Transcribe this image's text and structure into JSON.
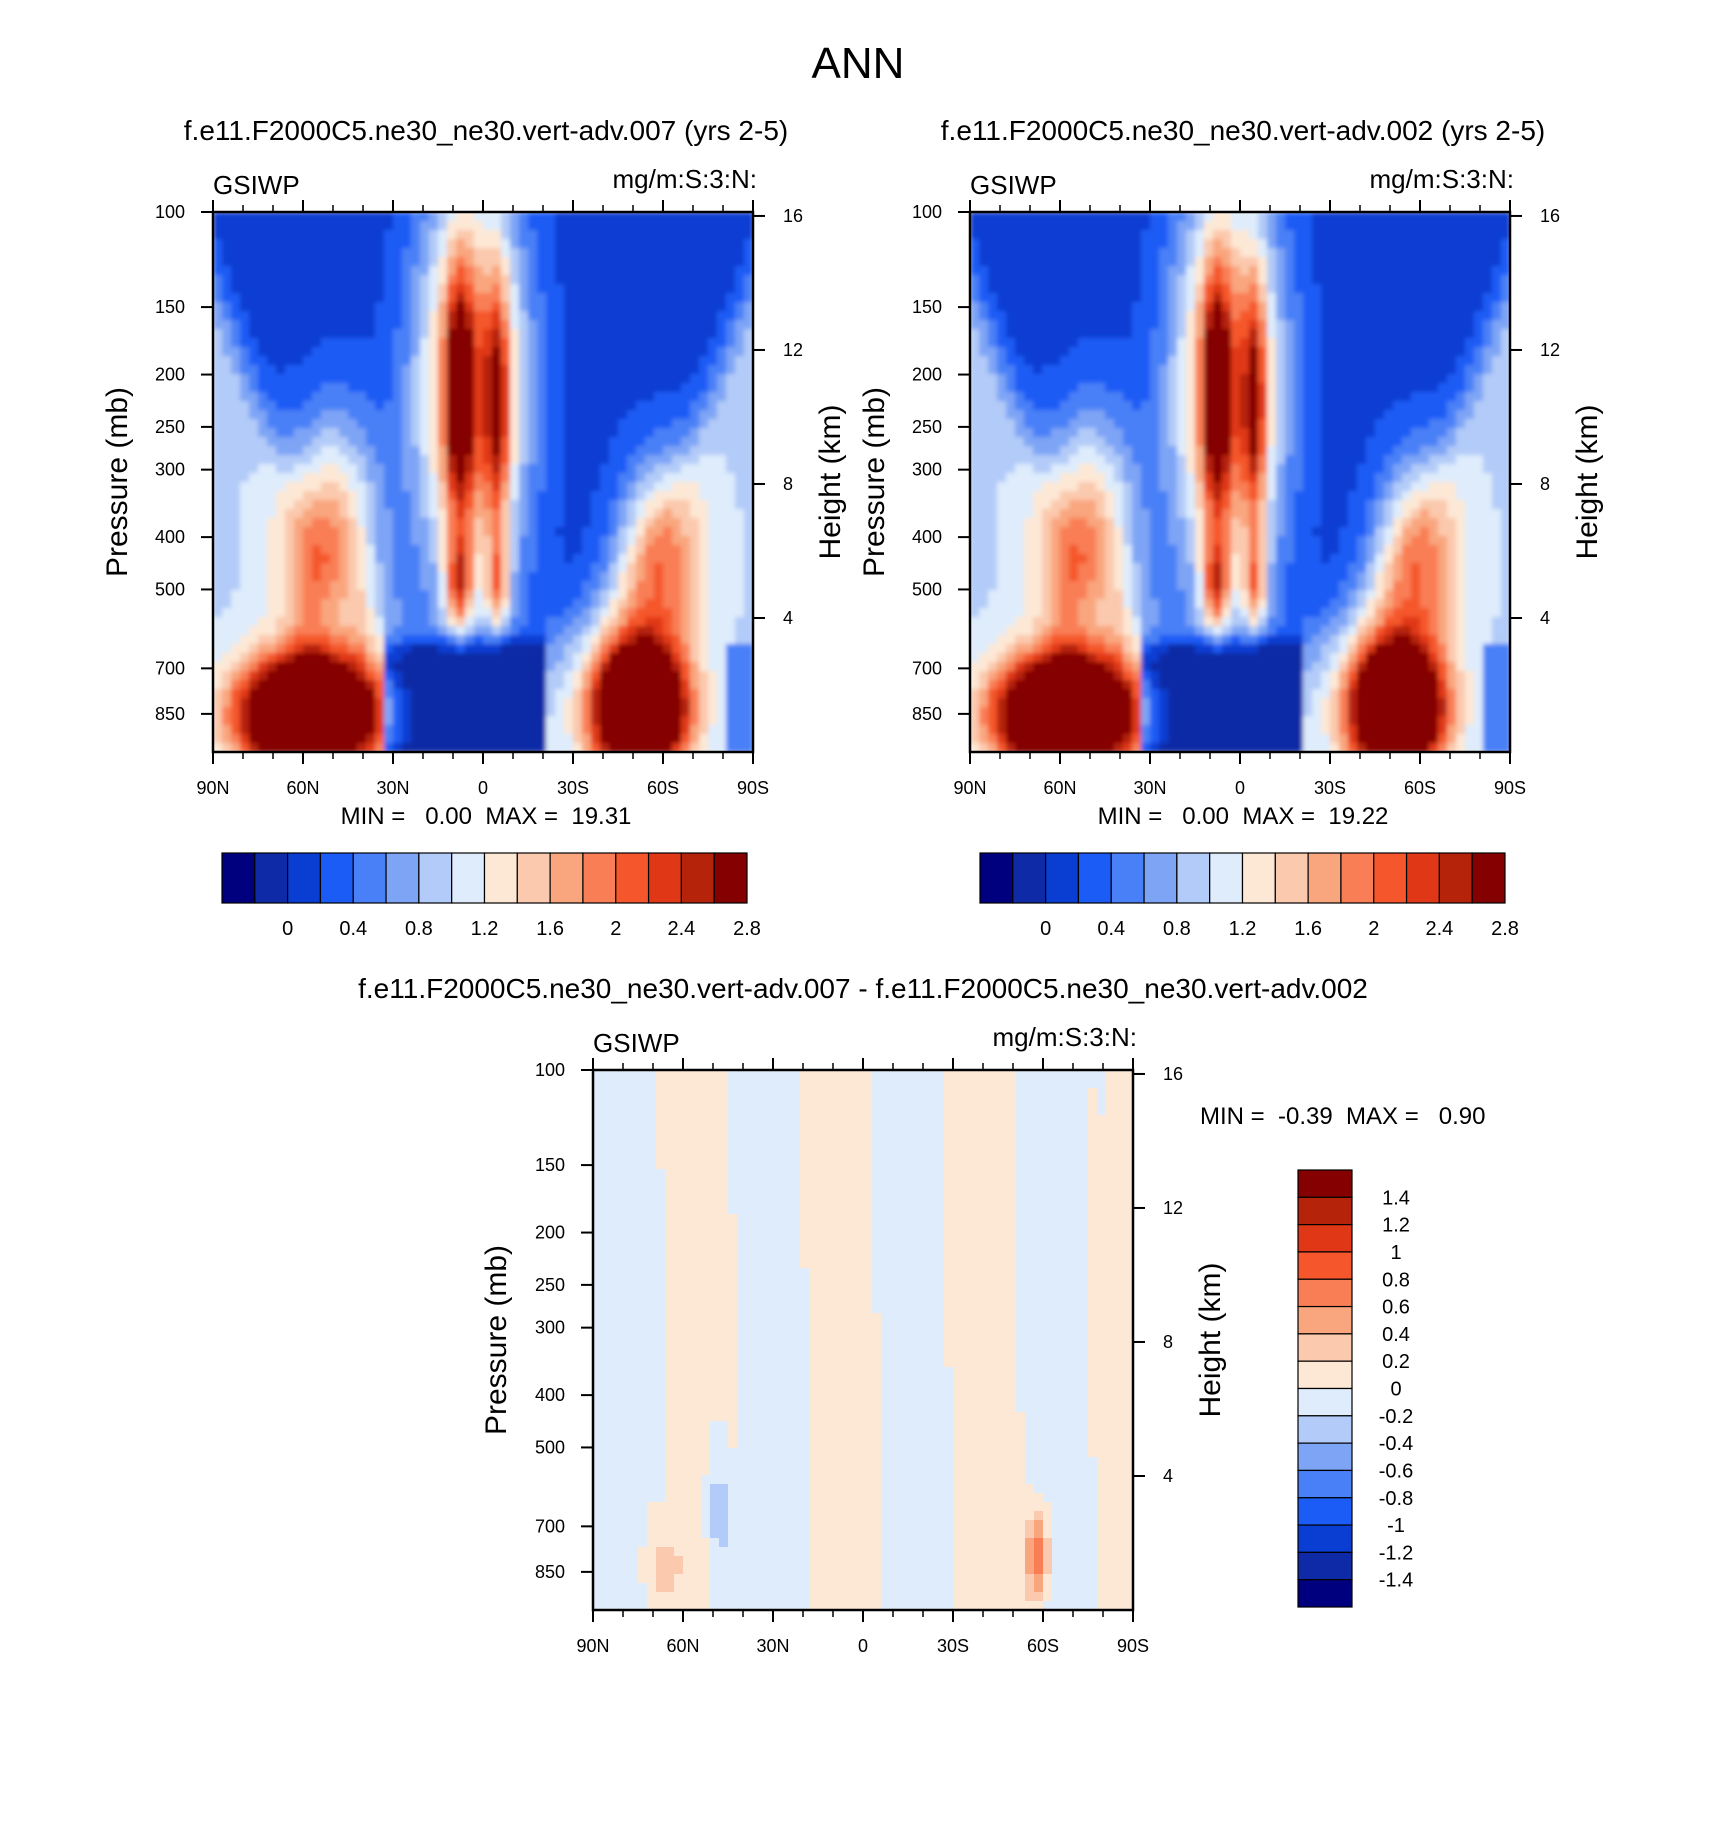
{
  "page_title": "ANN",
  "chart_data": [
    {
      "type": "heatmap",
      "panel": "case-007",
      "title": "f.e11.F2000C5.ne30_ne30.vert-adv.007 (yrs 2-5)",
      "variable_label": "GSIWP",
      "units_label": "mg/m:S:3:N:",
      "ylabel": "Pressure (mb)",
      "y2label": "Height (km)",
      "xlabel": "",
      "x_tick_labels": [
        "90N",
        "60N",
        "30N",
        "0",
        "30S",
        "60S",
        "90S"
      ],
      "x_ticks": [
        90,
        60,
        30,
        0,
        -30,
        -60,
        -90
      ],
      "xlim": [
        90,
        -90
      ],
      "y_tick_labels": [
        "100",
        "150",
        "200",
        "250",
        "300",
        "400",
        "500",
        "700",
        "850"
      ],
      "y_ticks": [
        100,
        150,
        200,
        250,
        300,
        400,
        500,
        700,
        850
      ],
      "y_scale": "log",
      "ylim": [
        100,
        1000
      ],
      "y2_tick_labels": [
        "16",
        "12",
        "8",
        "4"
      ],
      "y2_ticks": [
        16,
        12,
        8,
        4
      ],
      "stats_text": "MIN =   0.00  MAX =  19.31",
      "min": 0.0,
      "max": 19.31,
      "contour_levels": [
        0,
        0.2,
        0.4,
        0.6,
        0.8,
        1.0,
        1.2,
        1.4,
        1.6,
        1.8,
        2.0,
        2.2,
        2.4,
        2.6,
        2.8
      ],
      "colorbar_labels": [
        "0",
        "0.4",
        "0.8",
        "1.2",
        "1.6",
        "2",
        "2.4",
        "2.8"
      ],
      "colorbar_orientation": "horizontal",
      "field_features": [
        {
          "lat": 8,
          "p": 250,
          "value": 3.0
        },
        {
          "lat": -5,
          "p": 250,
          "value": 2.8
        },
        {
          "lat": 8,
          "p": 500,
          "value": 2.8
        },
        {
          "lat": -5,
          "p": 500,
          "value": 2.6
        },
        {
          "lat": 50,
          "p": 380,
          "value": 2.2
        },
        {
          "lat": -58,
          "p": 430,
          "value": 2.0
        },
        {
          "lat": 58,
          "p": 820,
          "value": 3.0
        },
        {
          "lat": -52,
          "p": 800,
          "value": 3.0
        },
        {
          "lat": 20,
          "p": 800,
          "value": 0.1
        }
      ]
    },
    {
      "type": "heatmap",
      "panel": "case-002",
      "title": "f.e11.F2000C5.ne30_ne30.vert-adv.002 (yrs 2-5)",
      "variable_label": "GSIWP",
      "units_label": "mg/m:S:3:N:",
      "ylabel": "Pressure (mb)",
      "y2label": "Height (km)",
      "xlabel": "",
      "x_tick_labels": [
        "90N",
        "60N",
        "30N",
        "0",
        "30S",
        "60S",
        "90S"
      ],
      "x_ticks": [
        90,
        60,
        30,
        0,
        -30,
        -60,
        -90
      ],
      "xlim": [
        90,
        -90
      ],
      "y_tick_labels": [
        "100",
        "150",
        "200",
        "250",
        "300",
        "400",
        "500",
        "700",
        "850"
      ],
      "y_ticks": [
        100,
        150,
        200,
        250,
        300,
        400,
        500,
        700,
        850
      ],
      "y_scale": "log",
      "ylim": [
        100,
        1000
      ],
      "y2_tick_labels": [
        "16",
        "12",
        "8",
        "4"
      ],
      "y2_ticks": [
        16,
        12,
        8,
        4
      ],
      "stats_text": "MIN =   0.00  MAX =  19.22",
      "min": 0.0,
      "max": 19.22,
      "contour_levels": [
        0,
        0.2,
        0.4,
        0.6,
        0.8,
        1.0,
        1.2,
        1.4,
        1.6,
        1.8,
        2.0,
        2.2,
        2.4,
        2.6,
        2.8
      ],
      "colorbar_labels": [
        "0",
        "0.4",
        "0.8",
        "1.2",
        "1.6",
        "2",
        "2.4",
        "2.8"
      ],
      "colorbar_orientation": "horizontal",
      "field_features": [
        {
          "lat": 8,
          "p": 250,
          "value": 3.0
        },
        {
          "lat": -5,
          "p": 250,
          "value": 2.7
        },
        {
          "lat": 8,
          "p": 500,
          "value": 2.8
        },
        {
          "lat": -5,
          "p": 500,
          "value": 2.5
        },
        {
          "lat": 50,
          "p": 380,
          "value": 2.2
        },
        {
          "lat": -58,
          "p": 430,
          "value": 1.9
        },
        {
          "lat": 58,
          "p": 820,
          "value": 3.0
        },
        {
          "lat": -52,
          "p": 800,
          "value": 3.0
        },
        {
          "lat": 20,
          "p": 800,
          "value": 0.1
        }
      ]
    },
    {
      "type": "heatmap",
      "panel": "difference",
      "title": "f.e11.F2000C5.ne30_ne30.vert-adv.007 - f.e11.F2000C5.ne30_ne30.vert-adv.002",
      "variable_label": "GSIWP",
      "units_label": "mg/m:S:3:N:",
      "ylabel": "Pressure (mb)",
      "y2label": "Height (km)",
      "xlabel": "",
      "x_tick_labels": [
        "90N",
        "60N",
        "30N",
        "0",
        "30S",
        "60S",
        "90S"
      ],
      "x_ticks": [
        90,
        60,
        30,
        0,
        -30,
        -60,
        -90
      ],
      "xlim": [
        90,
        -90
      ],
      "y_tick_labels": [
        "100",
        "150",
        "200",
        "250",
        "300",
        "400",
        "500",
        "700",
        "850"
      ],
      "y_ticks": [
        100,
        150,
        200,
        250,
        300,
        400,
        500,
        700,
        850
      ],
      "y_scale": "log",
      "ylim": [
        100,
        1000
      ],
      "y2_tick_labels": [
        "16",
        "12",
        "8",
        "4"
      ],
      "y2_ticks": [
        16,
        12,
        8,
        4
      ],
      "stats_text": "MIN =  -0.39  MAX =   0.90",
      "min": -0.39,
      "max": 0.9,
      "contour_levels": [
        -1.4,
        -1.2,
        -1.0,
        -0.8,
        -0.6,
        -0.4,
        -0.2,
        0,
        0.2,
        0.4,
        0.6,
        0.8,
        1.0,
        1.2,
        1.4
      ],
      "colorbar_labels": [
        "1.4",
        "1.2",
        "1",
        "0.8",
        "0.6",
        "0.4",
        "0.2",
        "0",
        "-0.2",
        "-0.4",
        "-0.6",
        "-0.8",
        "-1",
        "-1.2",
        "-1.4"
      ],
      "colorbar_orientation": "vertical",
      "field_features": [
        {
          "lat": -58,
          "p": 780,
          "value": 0.9
        },
        {
          "lat": 66,
          "p": 820,
          "value": 0.3
        },
        {
          "lat": 48,
          "p": 700,
          "value": -0.3
        },
        {
          "lat": 34,
          "p": 300,
          "value": -0.1
        },
        {
          "lat": 4,
          "p": 300,
          "value": -0.1
        },
        {
          "lat": -40,
          "p": 300,
          "value": 0.1
        }
      ]
    }
  ],
  "palette": [
    "#00007f",
    "#0f2aa6",
    "#0a3ed2",
    "#1a5cf5",
    "#4a80f7",
    "#7ea4f6",
    "#b2cbf8",
    "#deecfc",
    "#fde8d5",
    "#fbc9ad",
    "#f9a67e",
    "#f97e55",
    "#f5562c",
    "#e03716",
    "#b6230b",
    "#850000"
  ]
}
